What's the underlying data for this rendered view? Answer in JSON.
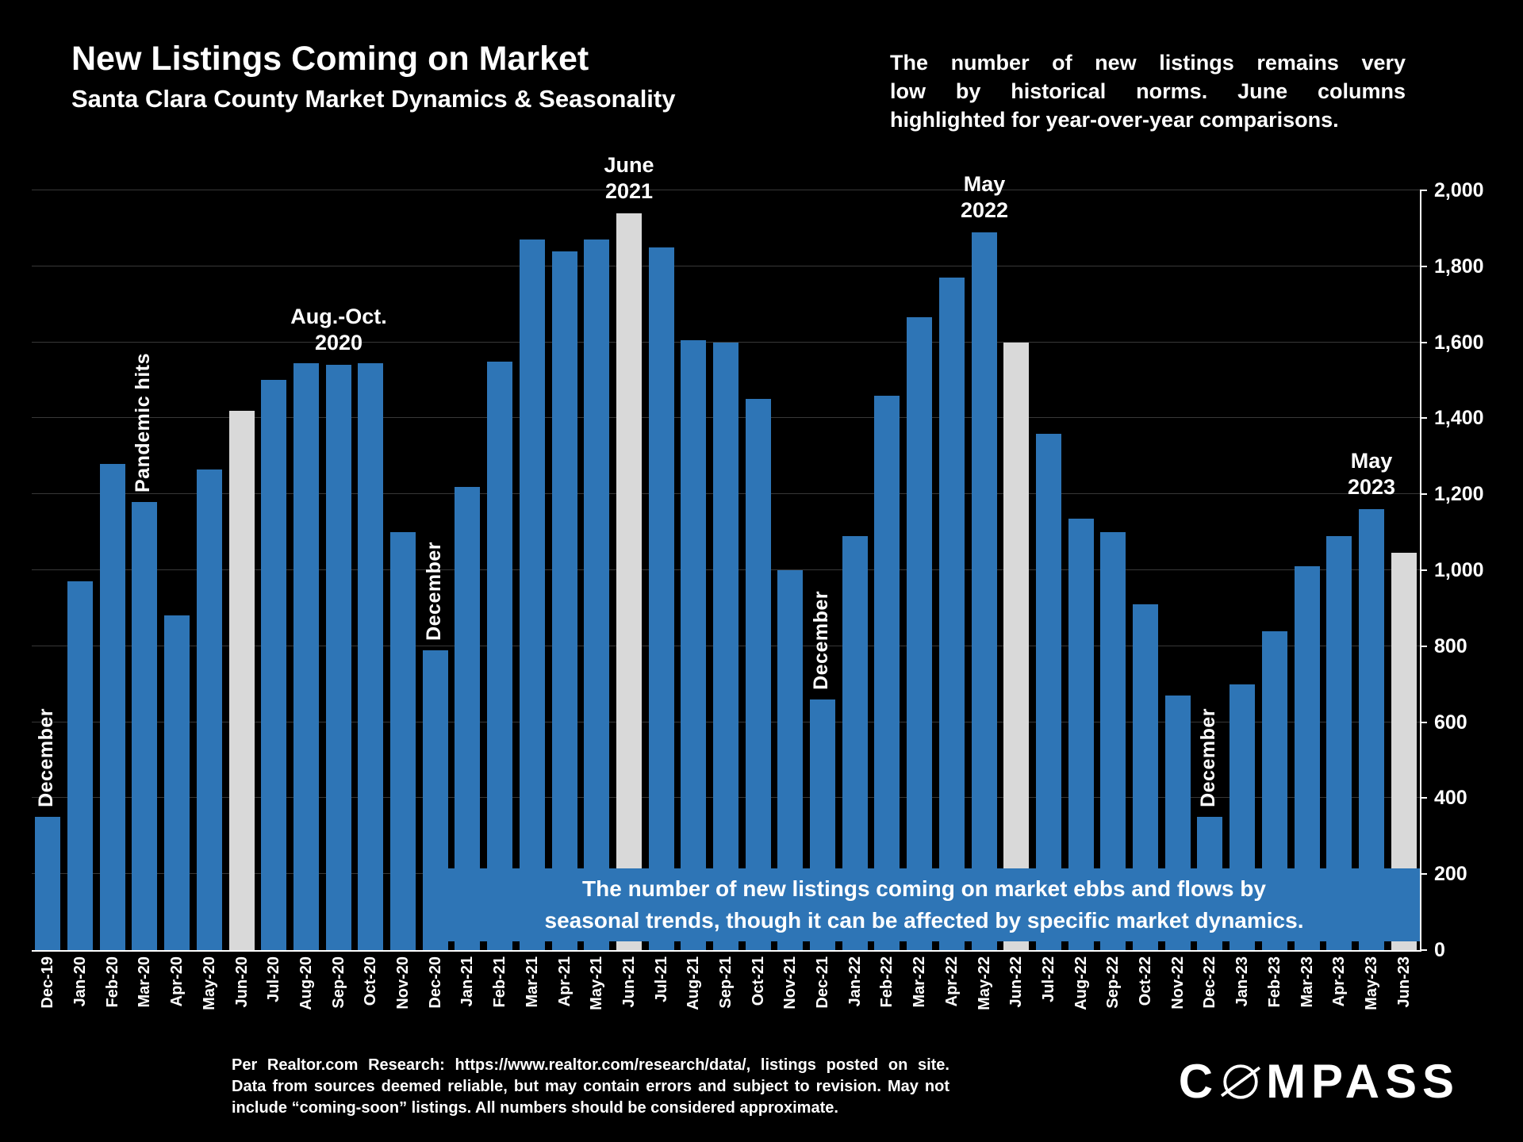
{
  "header": {
    "title": "New Listings Coming on Market",
    "subtitle": "Santa Clara County Market Dynamics & Seasonality",
    "note_lines": [
      "The number of new listings remains very",
      "low by historical norms. June columns",
      "highlighted for year-over-year comparisons."
    ]
  },
  "chart_data": {
    "type": "bar",
    "title": "New Listings Coming on Market",
    "xlabel": "",
    "ylabel": "",
    "ylim": [
      0,
      2000
    ],
    "ytick_step": 200,
    "ytick_labels": [
      "0",
      "200",
      "400",
      "600",
      "800",
      "1,000",
      "1,200",
      "1,400",
      "1,600",
      "1,800",
      "2,000"
    ],
    "grid": true,
    "legend": "none",
    "bar_color": "#2e75b6",
    "highlight_color": "#d9d9d9",
    "categories": [
      "Dec-19",
      "Jan-20",
      "Feb-20",
      "Mar-20",
      "Apr-20",
      "May-20",
      "Jun-20",
      "Jul-20",
      "Aug-20",
      "Sep-20",
      "Oct-20",
      "Nov-20",
      "Dec-20",
      "Jan-21",
      "Feb-21",
      "Mar-21",
      "Apr-21",
      "May-21",
      "Jun-21",
      "Jul-21",
      "Aug-21",
      "Sep-21",
      "Oct-21",
      "Nov-21",
      "Dec-21",
      "Jan-22",
      "Feb-22",
      "Mar-22",
      "Apr-22",
      "May-22",
      "Jun-22",
      "Jul-22",
      "Aug-22",
      "Sep-22",
      "Oct-22",
      "Nov-22",
      "Dec-22",
      "Jan-23",
      "Feb-23",
      "Mar-23",
      "Apr-23",
      "May-23",
      "Jun-23"
    ],
    "values": [
      350,
      970,
      1280,
      1180,
      880,
      1265,
      1420,
      1500,
      1545,
      1540,
      1545,
      1100,
      790,
      1220,
      1550,
      1870,
      1840,
      1870,
      1940,
      1850,
      1605,
      1600,
      1450,
      1000,
      660,
      1090,
      1460,
      1665,
      1770,
      1890,
      1600,
      1360,
      1135,
      1100,
      910,
      670,
      350,
      700,
      840,
      1010,
      1090,
      1160,
      1045
    ],
    "highlighted_categories": [
      "Jun-20",
      "Jun-21",
      "Jun-22",
      "Jun-23"
    ],
    "annotations": [
      {
        "category": "Dec-19",
        "lines": [
          "December"
        ],
        "rotated": true
      },
      {
        "category": "Mar-20",
        "lines": [
          "Pandemic hits"
        ],
        "rotated": true
      },
      {
        "category": "Sep-20",
        "lines": [
          "Aug.-Oct.",
          "2020"
        ],
        "rotated": false
      },
      {
        "category": "Dec-20",
        "lines": [
          "December"
        ],
        "rotated": true
      },
      {
        "category": "Jun-21",
        "lines": [
          "June",
          "2021"
        ],
        "rotated": false
      },
      {
        "category": "Dec-21",
        "lines": [
          "December"
        ],
        "rotated": true
      },
      {
        "category": "May-22",
        "lines": [
          "May",
          "2022"
        ],
        "rotated": false
      },
      {
        "category": "Dec-22",
        "lines": [
          "December"
        ],
        "rotated": true
      },
      {
        "category": "May-23",
        "lines": [
          "May",
          "2023"
        ],
        "rotated": false
      }
    ],
    "banner_note": {
      "line1": "The number of new listings coming on market ebbs and flows by",
      "line2": "seasonal trends, though it can be affected by specific market dynamics."
    }
  },
  "footer": {
    "disclaimer_lines": [
      "Per Realtor.com Research: https://www.realtor.com/research/data/, listings posted on site.",
      "Data from sources deemed reliable, but may contain errors and subject to revision. May not",
      "include “coming-soon” listings. All numbers should be considered approximate."
    ],
    "logo": {
      "text": "COMPASS",
      "prefix": "C",
      "suffix": "MPASS"
    }
  }
}
